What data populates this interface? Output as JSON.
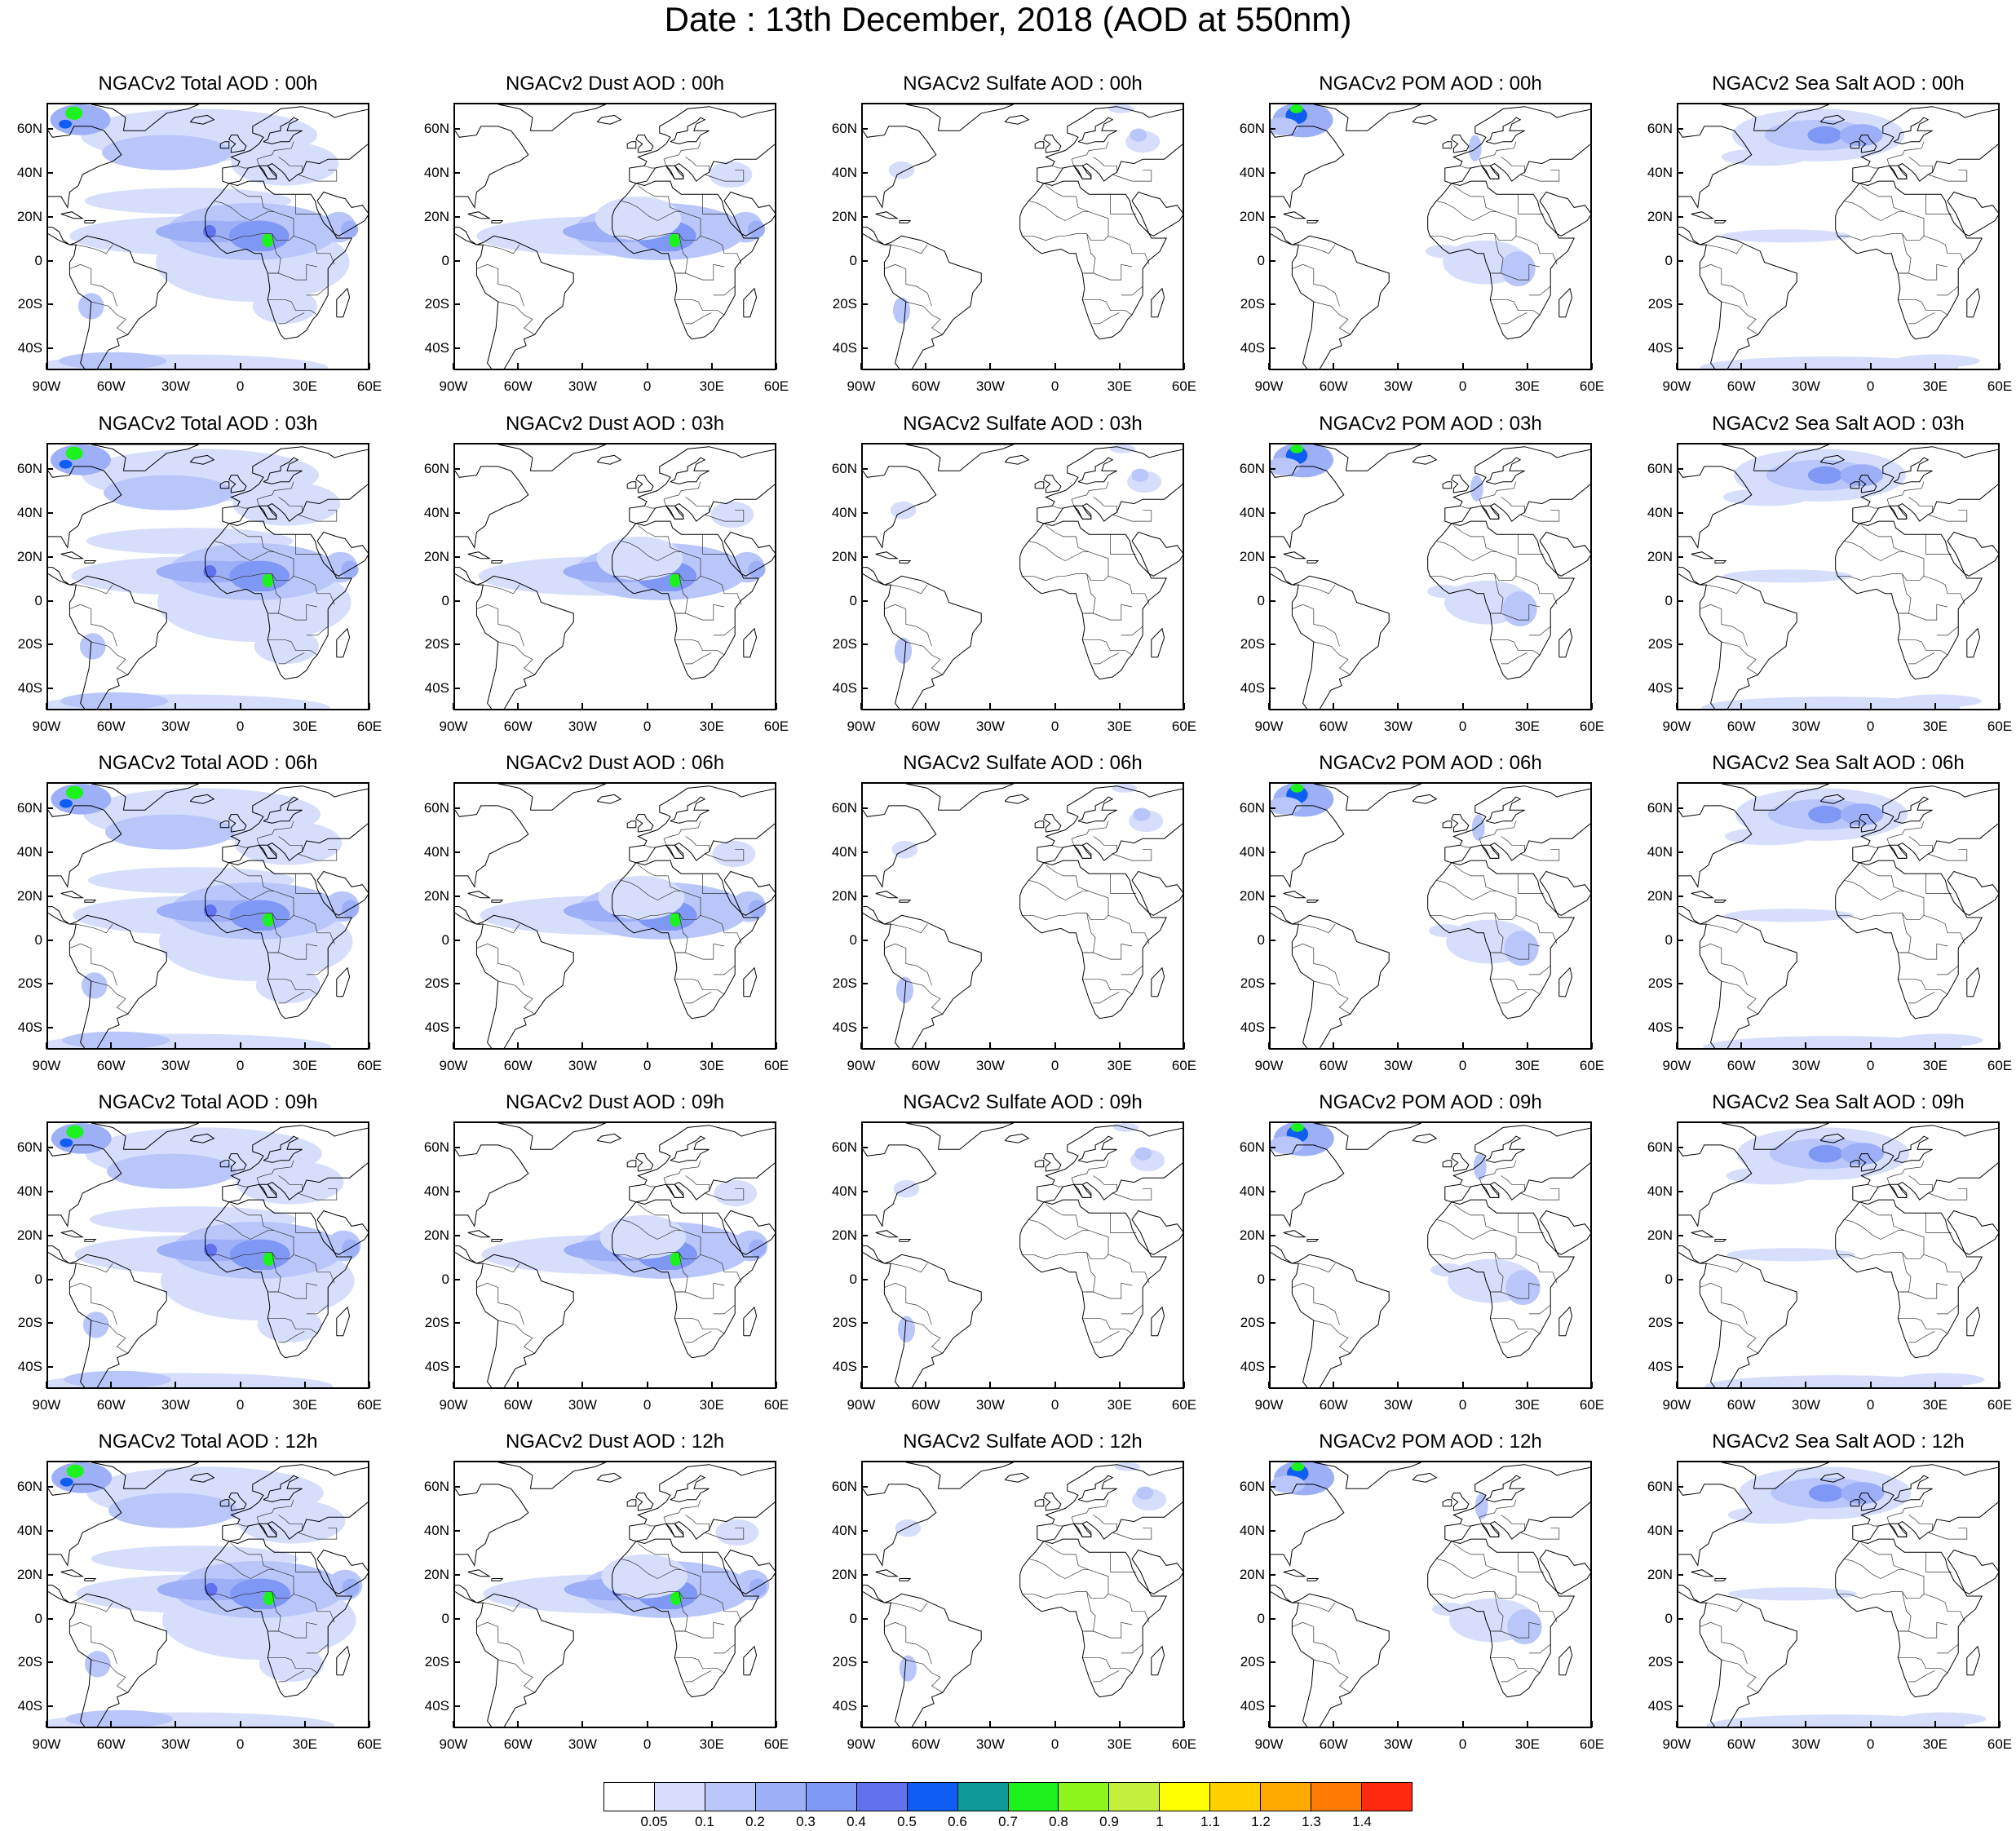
{
  "figure": {
    "title": "Date : 13th December, 2018 (AOD at 550nm)"
  },
  "lat_ticks": [
    "60N",
    "40N",
    "20N",
    "0",
    "20S",
    "40S"
  ],
  "lon_ticks": [
    "90W",
    "60W",
    "30W",
    "0",
    "30E",
    "60E"
  ],
  "columns": [
    "total",
    "dust",
    "sulfate",
    "pom",
    "seasalt"
  ],
  "panels": [
    {
      "title": "NGACv2 Total AOD : 00h",
      "species": "total",
      "hour": 0
    },
    {
      "title": "NGACv2 Dust AOD : 00h",
      "species": "dust",
      "hour": 0
    },
    {
      "title": "NGACv2 Sulfate AOD : 00h",
      "species": "sulfate",
      "hour": 0
    },
    {
      "title": "NGACv2 POM AOD : 00h",
      "species": "pom",
      "hour": 0
    },
    {
      "title": "NGACv2 Sea Salt AOD : 00h",
      "species": "seasalt",
      "hour": 0
    },
    {
      "title": "NGACv2 Total AOD : 03h",
      "species": "total",
      "hour": 3
    },
    {
      "title": "NGACv2 Dust AOD : 03h",
      "species": "dust",
      "hour": 3
    },
    {
      "title": "NGACv2 Sulfate AOD : 03h",
      "species": "sulfate",
      "hour": 3
    },
    {
      "title": "NGACv2 POM AOD : 03h",
      "species": "pom",
      "hour": 3
    },
    {
      "title": "NGACv2 Sea Salt AOD : 03h",
      "species": "seasalt",
      "hour": 3
    },
    {
      "title": "NGACv2 Total AOD : 06h",
      "species": "total",
      "hour": 6
    },
    {
      "title": "NGACv2 Dust AOD : 06h",
      "species": "dust",
      "hour": 6
    },
    {
      "title": "NGACv2 Sulfate AOD : 06h",
      "species": "sulfate",
      "hour": 6
    },
    {
      "title": "NGACv2 POM AOD : 06h",
      "species": "pom",
      "hour": 6
    },
    {
      "title": "NGACv2 Sea Salt AOD : 06h",
      "species": "seasalt",
      "hour": 6
    },
    {
      "title": "NGACv2 Total AOD : 09h",
      "species": "total",
      "hour": 9
    },
    {
      "title": "NGACv2 Dust AOD : 09h",
      "species": "dust",
      "hour": 9
    },
    {
      "title": "NGACv2 Sulfate AOD : 09h",
      "species": "sulfate",
      "hour": 9
    },
    {
      "title": "NGACv2 POM AOD : 09h",
      "species": "pom",
      "hour": 9
    },
    {
      "title": "NGACv2 Sea Salt  AOD : 09h",
      "species": "seasalt",
      "hour": 9
    },
    {
      "title": "NGACv2 Total AOD  : 12h",
      "species": "total",
      "hour": 12
    },
    {
      "title": "NGACv2 Dust AOD : 12h",
      "species": "dust",
      "hour": 12
    },
    {
      "title": "NGACv2 Sulfate AOD : 12h",
      "species": "sulfate",
      "hour": 12
    },
    {
      "title": "NGACv2 POM  AOD : 12h",
      "species": "pom",
      "hour": 12
    },
    {
      "title": "NGACv2 Sea Salt  AOD : 12h",
      "species": "seasalt",
      "hour": 12
    }
  ],
  "colorbar": {
    "labels": [
      "0.05",
      "0.1",
      "0.2",
      "0.3",
      "0.4",
      "0.5",
      "0.6",
      "0.7",
      "0.8",
      "0.9",
      "1",
      "1.1",
      "1.2",
      "1.3",
      "1.4"
    ],
    "colors": [
      "#ffffff",
      "#d6defc",
      "#b9c6fa",
      "#9caff7",
      "#7f97f5",
      "#6272ef",
      "#0f5df2",
      "#0f9a97",
      "#1cf21c",
      "#8ef51c",
      "#c4f03c",
      "#ffff00",
      "#ffd000",
      "#ffa800",
      "#ff7a00",
      "#ff2a10"
    ]
  }
}
